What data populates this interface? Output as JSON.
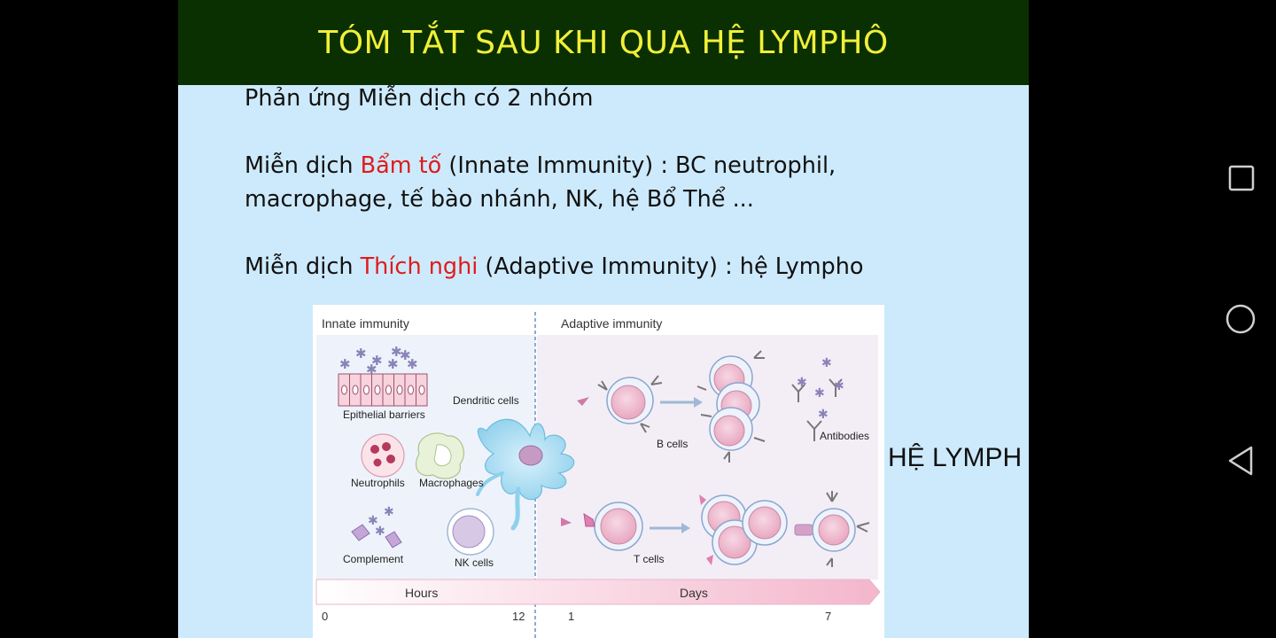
{
  "slide": {
    "title": "TÓM TẮT SAU KHI QUA HỆ LYMPHÔ",
    "line1": "Phản ứng Miễn dịch có 2 nhóm",
    "line2": {
      "prefix": "Miễn dịch ",
      "highlight": "Bẩm tố",
      "suffix": " (Innate Immunity) : BC neutrophil,"
    },
    "line3": "macrophage, tế bào nhánh, NK, hệ Bổ Thể ...",
    "line4": {
      "prefix": "Miễn dịch ",
      "highlight": "Thích nghi",
      "suffix": " (Adaptive Immunity) :  hệ Lympho"
    },
    "figure_side_label": "HỆ LYMPH"
  },
  "figure": {
    "innate_header": "Innate immunity",
    "adaptive_header": "Adaptive immunity",
    "labels": {
      "epithelial": "Epithelial barriers",
      "dendritic": "Dendritic cells",
      "neutrophils": "Neutrophils",
      "macrophages": "Macrophages",
      "complement": "Complement",
      "nk": "NK cells",
      "bcells": "B cells",
      "antibodies": "Antibodies",
      "tcells": "T cells"
    },
    "timeline": {
      "hours_label": "Hours",
      "days_label": "Days",
      "ticks": [
        "0",
        "12",
        "1",
        "7"
      ]
    }
  },
  "colors": {
    "title_bg": "#0a2f00",
    "title_text": "#f1ef3a",
    "slide_bg": "#cdeafc",
    "highlight": "#e01b1b"
  },
  "nav": {
    "icons": [
      "recent-apps-icon",
      "home-icon",
      "back-icon"
    ]
  }
}
